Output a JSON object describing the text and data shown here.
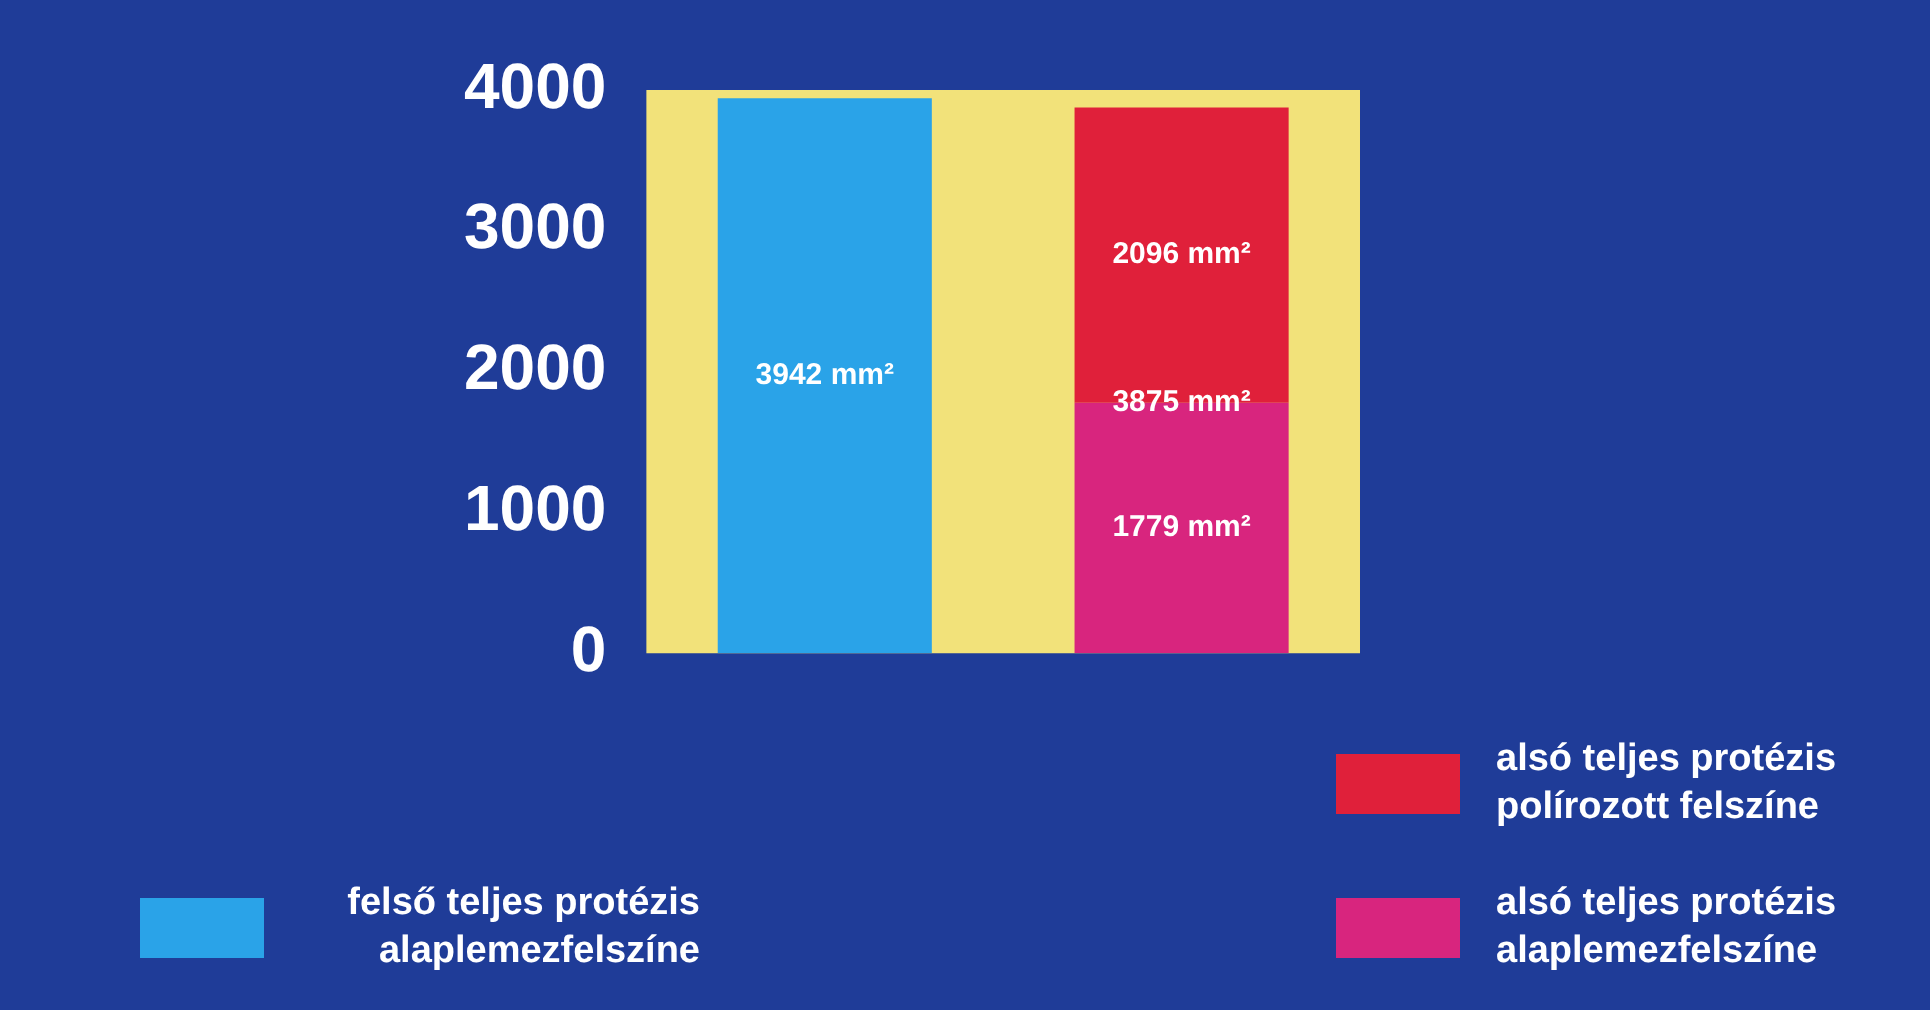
{
  "chart_data": {
    "type": "bar",
    "stacked": true,
    "categories": [
      null,
      null
    ],
    "series": [
      {
        "name": "felső teljes protézis alaplemezfelszíne",
        "color": "#2aa3e8",
        "values": [
          3942,
          null
        ],
        "value_labels": [
          "3942 mm²",
          null
        ]
      },
      {
        "name": "alsó teljes protézis alaplemezfelszíne",
        "color": "#d8257e",
        "values": [
          null,
          1779
        ],
        "value_labels": [
          null,
          "1779 mm²"
        ]
      },
      {
        "name": "alsó teljes protézis polírozott felszíne",
        "color": "#e0203a",
        "values": [
          null,
          2096
        ],
        "value_labels": [
          null,
          "2096 mm²"
        ]
      }
    ],
    "totals": [
      null,
      "3875 mm²"
    ],
    "ylim": [
      0,
      4000
    ],
    "yticks": [
      0,
      1000,
      2000,
      3000,
      4000
    ],
    "grid": false,
    "legend": "bottom"
  }
}
